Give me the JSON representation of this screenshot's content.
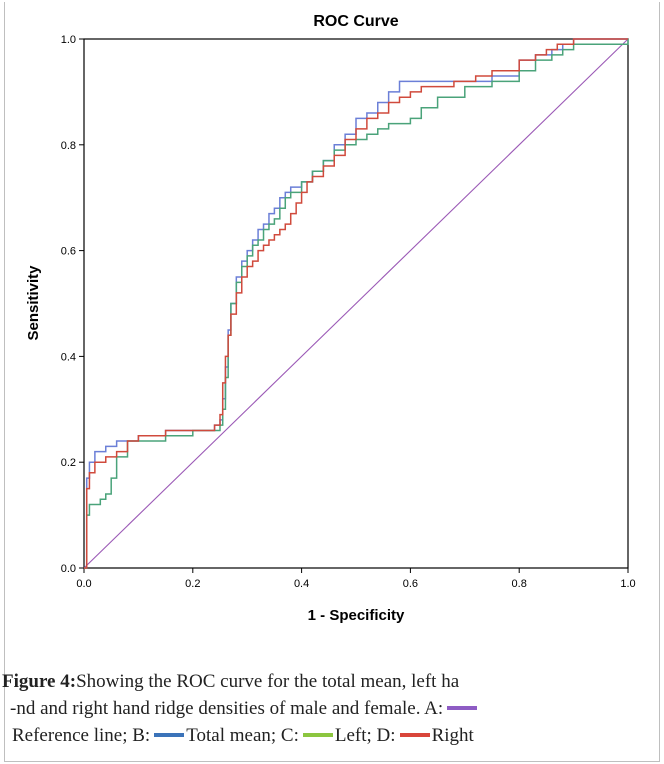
{
  "chart_data": {
    "type": "line",
    "title": "ROC Curve",
    "xlabel": "1 - Specificity",
    "ylabel": "Sensitivity",
    "xlim": [
      0,
      1
    ],
    "ylim": [
      0,
      1
    ],
    "xticks": [
      "0.0",
      "0.2",
      "0.4",
      "0.6",
      "0.8",
      "1.0"
    ],
    "yticks": [
      "0.0",
      "0.2",
      "0.4",
      "0.6",
      "0.8",
      "1.0"
    ],
    "grid": false,
    "legend": "none",
    "series": [
      {
        "name": "Reference line",
        "color": "#9b59b6",
        "x": [
          0,
          1
        ],
        "y": [
          0,
          1
        ]
      },
      {
        "name": "Total mean",
        "color": "#6b7fd7",
        "x": [
          0,
          0.005,
          0.01,
          0.02,
          0.04,
          0.06,
          0.1,
          0.15,
          0.2,
          0.24,
          0.25,
          0.255,
          0.26,
          0.265,
          0.27,
          0.28,
          0.29,
          0.3,
          0.31,
          0.32,
          0.33,
          0.34,
          0.35,
          0.36,
          0.37,
          0.38,
          0.39,
          0.4,
          0.42,
          0.44,
          0.46,
          0.48,
          0.5,
          0.52,
          0.54,
          0.56,
          0.58,
          0.6,
          0.62,
          0.65,
          0.7,
          0.75,
          0.8,
          0.83,
          0.86,
          0.88,
          0.9,
          0.93,
          0.95,
          1.0
        ],
        "y": [
          0,
          0.17,
          0.2,
          0.22,
          0.23,
          0.24,
          0.25,
          0.26,
          0.26,
          0.27,
          0.28,
          0.32,
          0.38,
          0.45,
          0.5,
          0.55,
          0.58,
          0.6,
          0.62,
          0.64,
          0.65,
          0.67,
          0.68,
          0.7,
          0.71,
          0.72,
          0.72,
          0.73,
          0.75,
          0.77,
          0.8,
          0.82,
          0.85,
          0.86,
          0.88,
          0.9,
          0.92,
          0.92,
          0.92,
          0.92,
          0.92,
          0.93,
          0.96,
          0.97,
          0.98,
          0.99,
          1.0,
          1.0,
          1.0,
          1.0
        ]
      },
      {
        "name": "Left",
        "color": "#4aa37a",
        "x": [
          0,
          0.005,
          0.01,
          0.02,
          0.03,
          0.04,
          0.05,
          0.06,
          0.08,
          0.1,
          0.15,
          0.2,
          0.24,
          0.25,
          0.255,
          0.26,
          0.265,
          0.27,
          0.28,
          0.29,
          0.3,
          0.31,
          0.32,
          0.33,
          0.34,
          0.35,
          0.36,
          0.37,
          0.38,
          0.4,
          0.42,
          0.44,
          0.46,
          0.48,
          0.5,
          0.52,
          0.54,
          0.56,
          0.58,
          0.6,
          0.62,
          0.65,
          0.7,
          0.75,
          0.8,
          0.83,
          0.86,
          0.88,
          0.9,
          0.95,
          1.0
        ],
        "y": [
          0,
          0.1,
          0.12,
          0.12,
          0.13,
          0.14,
          0.17,
          0.21,
          0.24,
          0.24,
          0.25,
          0.26,
          0.26,
          0.27,
          0.3,
          0.36,
          0.44,
          0.5,
          0.54,
          0.57,
          0.59,
          0.61,
          0.62,
          0.64,
          0.65,
          0.66,
          0.68,
          0.7,
          0.71,
          0.73,
          0.75,
          0.77,
          0.79,
          0.8,
          0.81,
          0.82,
          0.83,
          0.84,
          0.84,
          0.85,
          0.87,
          0.89,
          0.91,
          0.92,
          0.94,
          0.96,
          0.97,
          0.98,
          0.99,
          0.99,
          1.0
        ]
      },
      {
        "name": "Right",
        "color": "#d04a3c",
        "x": [
          0,
          0.005,
          0.01,
          0.02,
          0.04,
          0.06,
          0.08,
          0.1,
          0.15,
          0.2,
          0.24,
          0.25,
          0.255,
          0.26,
          0.265,
          0.27,
          0.28,
          0.29,
          0.3,
          0.31,
          0.32,
          0.33,
          0.34,
          0.35,
          0.36,
          0.37,
          0.38,
          0.39,
          0.4,
          0.41,
          0.42,
          0.44,
          0.46,
          0.48,
          0.5,
          0.52,
          0.54,
          0.56,
          0.58,
          0.6,
          0.62,
          0.65,
          0.68,
          0.7,
          0.72,
          0.75,
          0.8,
          0.83,
          0.85,
          0.87,
          0.9,
          0.95,
          1.0
        ],
        "y": [
          0,
          0.15,
          0.18,
          0.2,
          0.21,
          0.22,
          0.24,
          0.25,
          0.26,
          0.26,
          0.27,
          0.29,
          0.35,
          0.4,
          0.44,
          0.48,
          0.52,
          0.55,
          0.57,
          0.58,
          0.6,
          0.61,
          0.62,
          0.63,
          0.64,
          0.65,
          0.67,
          0.69,
          0.71,
          0.73,
          0.74,
          0.76,
          0.78,
          0.81,
          0.83,
          0.85,
          0.86,
          0.88,
          0.89,
          0.9,
          0.91,
          0.91,
          0.92,
          0.92,
          0.93,
          0.94,
          0.96,
          0.97,
          0.98,
          0.99,
          1.0,
          1.0,
          1.0
        ]
      }
    ]
  },
  "caption": {
    "figure_label": "Figure 4:",
    "line1": "Showing the ROC curve for the total mean, left ha",
    "line2": "-nd and right hand ridge densities of male and female. A:",
    "line3_a": "Reference line; B:",
    "line3_b": "Total mean; C:",
    "line3_c": "Left; D:",
    "line3_d": "Right",
    "swatch_colors": {
      "reference": "#8e5cc4",
      "total_mean": "#3b73b9",
      "left": "#8cc63f",
      "right": "#d9453a"
    }
  }
}
